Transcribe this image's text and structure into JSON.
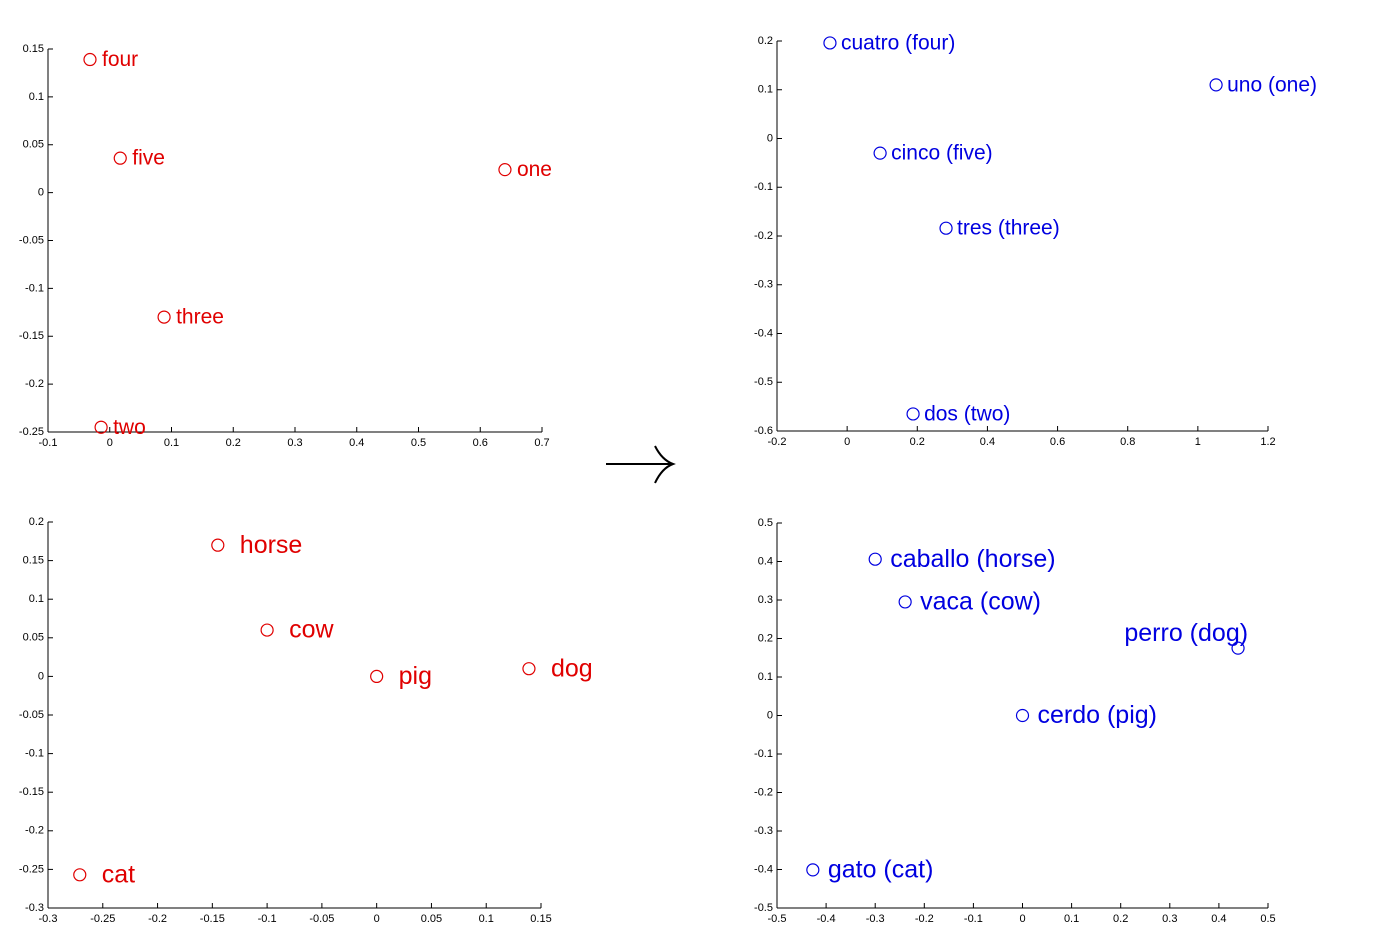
{
  "chart_data": [
    {
      "type": "scatter",
      "color": "#e00000",
      "labels": [
        "four",
        "five",
        "one",
        "three",
        "two"
      ],
      "x": [
        -0.032,
        0.017,
        0.64,
        0.088,
        -0.014
      ],
      "y": [
        0.139,
        0.036,
        0.024,
        -0.13,
        -0.245
      ],
      "xlim": [
        -0.1,
        0.7
      ],
      "xticks": [
        -0.1,
        0,
        0.1,
        0.2,
        0.3,
        0.4,
        0.5,
        0.6,
        0.7
      ],
      "ylim": [
        -0.25,
        0.15
      ],
      "yticks": [
        -0.25,
        -0.2,
        -0.15,
        -0.1,
        -0.05,
        0,
        0.05,
        0.1,
        0.15
      ]
    },
    {
      "type": "scatter",
      "color": "#0000e0",
      "labels": [
        "cuatro (four)",
        "uno (one)",
        "cinco (five)",
        "tres (three)",
        "dos (two)"
      ],
      "x": [
        -0.049,
        1.052,
        0.094,
        0.282,
        0.188
      ],
      "y": [
        0.196,
        0.11,
        -0.03,
        -0.184,
        -0.565
      ],
      "xlim": [
        -0.2,
        1.2
      ],
      "xticks": [
        -0.2,
        0,
        0.2,
        0.4,
        0.6,
        0.8,
        1,
        1.2
      ],
      "ylim": [
        -0.6,
        0.2
      ],
      "yticks": [
        -0.6,
        -0.5,
        -0.4,
        -0.3,
        -0.2,
        -0.1,
        0,
        0.1,
        0.2
      ]
    },
    {
      "type": "scatter",
      "color": "#e00000",
      "labels": [
        "horse",
        "cow",
        "pig",
        "dog",
        "cat"
      ],
      "x": [
        -0.145,
        -0.1,
        0,
        0.139,
        -0.271
      ],
      "y": [
        0.17,
        0.06,
        0,
        0.01,
        -0.257
      ],
      "xlim": [
        -0.3,
        0.15
      ],
      "xticks": [
        -0.3,
        -0.25,
        -0.2,
        -0.15,
        -0.1,
        -0.05,
        0,
        0.05,
        0.1,
        0.15
      ],
      "ylim": [
        -0.3,
        0.2
      ],
      "yticks": [
        -0.3,
        -0.25,
        -0.2,
        -0.15,
        -0.1,
        -0.05,
        0,
        0.05,
        0.1,
        0.15,
        0.2
      ]
    },
    {
      "type": "scatter",
      "color": "#0000e0",
      "labels": [
        "caballo (horse)",
        "vaca (cow)",
        "perro (dog)",
        "cerdo (pig)",
        "gato (cat)"
      ],
      "x": [
        -0.3,
        -0.239,
        0.439,
        0,
        -0.427
      ],
      "y": [
        0.406,
        0.295,
        0.175,
        0,
        -0.401
      ],
      "xlim": [
        -0.5,
        0.5
      ],
      "xticks": [
        -0.5,
        -0.4,
        -0.3,
        -0.2,
        -0.1,
        0,
        0.1,
        0.2,
        0.3,
        0.4,
        0.5
      ],
      "ylim": [
        -0.5,
        0.5
      ],
      "yticks": [
        -0.5,
        -0.4,
        -0.3,
        -0.2,
        -0.1,
        0,
        0.1,
        0.2,
        0.3,
        0.4,
        0.5
      ]
    }
  ]
}
